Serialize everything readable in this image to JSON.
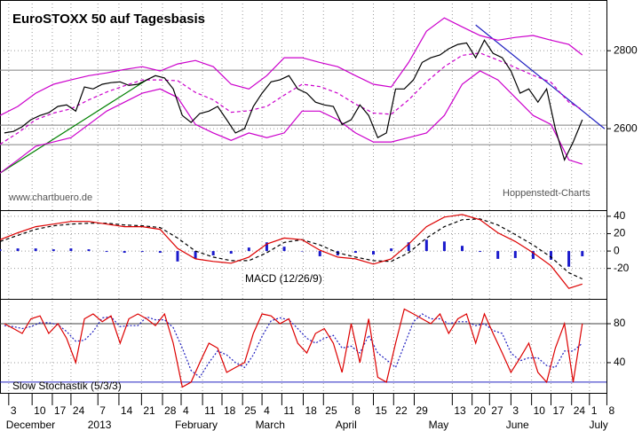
{
  "chart_data": [
    {
      "type": "line",
      "title": "EuroSTOXX 50 auf Tagesbasis",
      "annotations": [
        "www.chartbuero.de",
        "Hoppenstedt-Charts"
      ],
      "xlim": [
        0,
        153
      ],
      "ylim": [
        2391,
        2930
      ],
      "yticks": [
        2600,
        2800
      ],
      "grid": true,
      "levels": [
        {
          "value": 2750,
          "color": "#808080"
        },
        {
          "value": 2609,
          "color": "#808080"
        },
        {
          "value": 2559,
          "color": "#808080"
        }
      ],
      "trendlines": [
        {
          "x": [
            0,
            37
          ],
          "values": [
            2486,
            2725
          ],
          "color": "#008000"
        },
        {
          "x": [
            120,
            152.5
          ],
          "values": [
            2866,
            2600
          ],
          "color": "#2020c0"
        }
      ],
      "series": [
        {
          "style": "solid",
          "color": "#cc00cc",
          "x": [
            0,
            4.5,
            9.0,
            13.5,
            17.9,
            22.4,
            26.9,
            31.4,
            35.9,
            40.4,
            44.8,
            49.3,
            53.8,
            58.3,
            62.8,
            67.3,
            71.7,
            76.2,
            80.7,
            85.2,
            89.7,
            94.2,
            98.7,
            103.1,
            107.6,
            112.1,
            116.6,
            121.1,
            125.6,
            130.0,
            134.5,
            139.0,
            143.5,
            146.9
          ],
          "values": [
            2634,
            2657,
            2691,
            2714,
            2725,
            2736,
            2743,
            2752,
            2759,
            2748,
            2766,
            2775,
            2759,
            2714,
            2702,
            2736,
            2782,
            2782,
            2770,
            2759,
            2736,
            2714,
            2707,
            2770,
            2850,
            2884,
            2861,
            2839,
            2827,
            2834,
            2839,
            2827,
            2816,
            2789
          ]
        },
        {
          "style": "dashed",
          "color": "#cc00cc",
          "x": [
            0,
            4.5,
            9.0,
            13.5,
            17.9,
            22.4,
            26.9,
            31.4,
            35.9,
            40.4,
            44.8,
            49.3,
            53.8,
            58.3,
            62.8,
            67.3,
            71.7,
            76.2,
            80.7,
            85.2,
            89.7,
            94.2,
            98.7,
            103.1,
            107.6,
            112.1,
            116.6,
            121.1,
            125.6,
            130.0,
            134.5,
            139.0,
            143.5,
            146.9
          ],
          "values": [
            2560,
            2589,
            2623,
            2640,
            2651,
            2674,
            2694,
            2710,
            2725,
            2725,
            2723,
            2693,
            2674,
            2642,
            2646,
            2657,
            2686,
            2714,
            2708,
            2691,
            2663,
            2640,
            2637,
            2674,
            2720,
            2759,
            2788,
            2794,
            2776,
            2757,
            2737,
            2719,
            2668,
            2649
          ]
        },
        {
          "style": "solid",
          "color": "#cc00cc",
          "x": [
            0,
            4.5,
            9.0,
            13.5,
            17.9,
            22.4,
            26.9,
            31.4,
            35.9,
            40.4,
            44.8,
            49.3,
            53.8,
            58.3,
            62.8,
            67.3,
            71.7,
            76.2,
            80.7,
            85.2,
            89.7,
            94.2,
            98.7,
            103.1,
            107.6,
            112.1,
            116.6,
            121.1,
            125.6,
            130.0,
            134.5,
            139.0,
            143.5,
            146.9
          ],
          "values": [
            2486,
            2520,
            2555,
            2566,
            2577,
            2611,
            2645,
            2668,
            2691,
            2702,
            2680,
            2611,
            2589,
            2570,
            2589,
            2577,
            2589,
            2645,
            2645,
            2623,
            2589,
            2566,
            2566,
            2577,
            2589,
            2634,
            2714,
            2748,
            2725,
            2680,
            2634,
            2611,
            2520,
            2509
          ]
        },
        {
          "style": "solid",
          "color": "#000000",
          "x": [
            1.1,
            3.4,
            5.6,
            7.8,
            10.1,
            12.3,
            14.6,
            16.8,
            19.1,
            21.3,
            23.5,
            25.8,
            28.0,
            30.3,
            32.5,
            34.8,
            37.0,
            39.2,
            41.5,
            43.7,
            46.0,
            48.2,
            50.4,
            52.7,
            54.9,
            57.2,
            59.4,
            61.7,
            63.9,
            66.1,
            68.4,
            70.6,
            72.9,
            75.1,
            77.4,
            79.6,
            81.8,
            84.1,
            86.3,
            88.6,
            90.8,
            93.0,
            95.3,
            97.5,
            99.8,
            102.0,
            104.3,
            106.5,
            108.7,
            111.0,
            113.2,
            115.5,
            117.7,
            120.0,
            122.2,
            124.4,
            126.7,
            128.9,
            131.2,
            133.4,
            135.7,
            137.9,
            140.1,
            142.4,
            144.6,
            146.9
          ],
          "values": [
            2589,
            2593,
            2605,
            2623,
            2634,
            2641,
            2657,
            2661,
            2645,
            2707,
            2702,
            2714,
            2718,
            2720,
            2711,
            2714,
            2725,
            2736,
            2730,
            2702,
            2634,
            2616,
            2639,
            2645,
            2657,
            2623,
            2589,
            2600,
            2657,
            2691,
            2720,
            2725,
            2736,
            2702,
            2691,
            2668,
            2661,
            2657,
            2611,
            2623,
            2661,
            2634,
            2577,
            2589,
            2702,
            2702,
            2725,
            2770,
            2782,
            2789,
            2805,
            2816,
            2820,
            2782,
            2827,
            2793,
            2782,
            2748,
            2691,
            2702,
            2668,
            2702,
            2600,
            2520,
            2566,
            2623
          ]
        }
      ]
    },
    {
      "type": "line",
      "label": "MACD (12/26/9)",
      "xlim": [
        0,
        153
      ],
      "ylim": [
        -55,
        47
      ],
      "yticks": [
        -20,
        0,
        20,
        40
      ],
      "grid": true,
      "levels": [],
      "trendlines": [],
      "series": [
        {
          "style": "bars",
          "color": "#1a1acc",
          "x": [
            0,
            4.5,
            9.0,
            13.5,
            17.9,
            22.4,
            26.9,
            31.4,
            35.9,
            40.4,
            44.8,
            49.3,
            53.8,
            58.3,
            62.8,
            67.3,
            71.7,
            76.2,
            80.7,
            85.2,
            89.7,
            94.2,
            98.7,
            103.1,
            107.6,
            112.1,
            116.6,
            121.1,
            125.6,
            130.0,
            134.5,
            139.0,
            143.5,
            146.9
          ],
          "values": [
            2,
            3,
            3,
            2,
            3,
            2,
            -1,
            -2,
            -1,
            -2,
            -12,
            -9,
            -5,
            -3,
            4,
            10,
            5,
            0,
            -6,
            -5,
            -2,
            -4,
            3,
            10,
            13,
            11,
            6,
            -1,
            -9,
            -8,
            -9,
            -10,
            -18,
            -6
          ]
        },
        {
          "style": "dashed",
          "color": "#000000",
          "x": [
            0,
            4.5,
            9.0,
            13.5,
            17.9,
            22.4,
            26.9,
            31.4,
            35.9,
            40.4,
            44.8,
            49.3,
            53.8,
            58.3,
            62.8,
            67.3,
            71.7,
            76.2,
            80.7,
            85.2,
            89.7,
            94.2,
            98.7,
            103.1,
            107.6,
            112.1,
            116.6,
            121.1,
            125.6,
            130.0,
            134.5,
            139.0,
            143.5,
            146.9
          ],
          "values": [
            11,
            18,
            25,
            29,
            31,
            32,
            32,
            30,
            29,
            27,
            15,
            0,
            -7,
            -11,
            -11,
            -2,
            10,
            13,
            7,
            -2,
            -7,
            -11,
            -12,
            -2,
            15,
            28,
            36,
            37,
            30,
            19,
            7,
            -7,
            -25,
            -32
          ]
        },
        {
          "style": "solid",
          "color": "#dd0000",
          "x": [
            0,
            4.5,
            9.0,
            13.5,
            17.9,
            22.4,
            26.9,
            31.4,
            35.9,
            40.4,
            44.8,
            49.3,
            53.8,
            58.3,
            62.8,
            67.3,
            71.7,
            76.2,
            80.7,
            85.2,
            89.7,
            94.2,
            98.7,
            103.1,
            107.6,
            112.1,
            116.6,
            121.1,
            125.6,
            130.0,
            134.5,
            139.0,
            143.5,
            146.9
          ],
          "values": [
            13,
            21,
            28,
            31,
            34,
            34,
            31,
            28,
            28,
            25,
            3,
            -9,
            -12,
            -14,
            -7,
            8,
            15,
            13,
            1,
            -7,
            -9,
            -15,
            -9,
            8,
            28,
            39,
            42,
            36,
            21,
            11,
            -2,
            -17,
            -43,
            -38
          ]
        }
      ]
    },
    {
      "type": "line",
      "label": "Slow Stochastik (5/3/3)",
      "xlim": [
        0,
        153
      ],
      "ylim": [
        9,
        105.5
      ],
      "yticks": [
        40,
        80
      ],
      "grid": true,
      "levels": [
        {
          "value": 80,
          "color": "#404040"
        },
        {
          "value": 20,
          "color": "#2020c0"
        }
      ],
      "trendlines": [],
      "xticks": [
        {
          "value": 2.2,
          "label": "3"
        },
        {
          "value": 8.1,
          "label": "10"
        },
        {
          "value": 13.2,
          "label": "17"
        },
        {
          "value": 17.9,
          "label": "24"
        },
        {
          "value": 24.7,
          "label": "7"
        },
        {
          "value": 30.0,
          "label": "14"
        },
        {
          "value": 35.7,
          "label": "21"
        },
        {
          "value": 41.0,
          "label": "28"
        },
        {
          "value": 45.7,
          "label": "4"
        },
        {
          "value": 51.1,
          "label": "11"
        },
        {
          "value": 56.0,
          "label": "18"
        },
        {
          "value": 61.2,
          "label": "25"
        },
        {
          "value": 66.1,
          "label": "4"
        },
        {
          "value": 71.1,
          "label": "11"
        },
        {
          "value": 76.5,
          "label": "18"
        },
        {
          "value": 81.6,
          "label": "25"
        },
        {
          "value": 89.0,
          "label": "8"
        },
        {
          "value": 94.2,
          "label": "15"
        },
        {
          "value": 99.3,
          "label": "22"
        },
        {
          "value": 104.5,
          "label": "29"
        },
        {
          "value": 114.1,
          "label": "13"
        },
        {
          "value": 119.1,
          "label": "20"
        },
        {
          "value": 123.5,
          "label": "27"
        },
        {
          "value": 128.9,
          "label": "3"
        },
        {
          "value": 134.1,
          "label": "10"
        },
        {
          "value": 139.0,
          "label": "17"
        },
        {
          "value": 144.2,
          "label": "24"
        },
        {
          "value": 148.7,
          "label": "1"
        },
        {
          "value": 153.1,
          "label": "8"
        }
      ],
      "month_labels": [
        {
          "value": 0.4,
          "label": "December"
        },
        {
          "value": 21.0,
          "label": "2013"
        },
        {
          "value": 43.0,
          "label": "February"
        },
        {
          "value": 63.3,
          "label": "March"
        },
        {
          "value": 83.5,
          "label": "April"
        },
        {
          "value": 107.0,
          "label": "May"
        },
        {
          "value": 126.5,
          "label": "June"
        },
        {
          "value": 147.5,
          "label": "July"
        }
      ],
      "series": [
        {
          "style": "dotted",
          "color": "#2020c0",
          "x": [
            1.1,
            3.4,
            5.6,
            7.8,
            10.1,
            12.3,
            14.6,
            16.8,
            19.1,
            21.3,
            23.5,
            25.8,
            28.0,
            30.3,
            32.5,
            34.8,
            37.0,
            39.2,
            41.5,
            43.7,
            46.0,
            48.2,
            50.4,
            52.7,
            54.9,
            57.2,
            59.4,
            61.7,
            63.9,
            66.1,
            68.4,
            70.6,
            72.9,
            75.1,
            77.4,
            79.6,
            81.8,
            84.1,
            86.3,
            88.6,
            90.8,
            93.0,
            95.3,
            97.5,
            99.8,
            102.0,
            104.3,
            106.5,
            108.7,
            111.0,
            113.2,
            115.5,
            117.7,
            120.0,
            122.2,
            124.4,
            126.7,
            128.9,
            131.2,
            133.4,
            135.7,
            137.9,
            140.1,
            142.4,
            144.6,
            146.9
          ],
          "values": [
            78,
            77,
            75,
            77,
            81,
            81,
            79,
            72,
            62,
            63,
            72,
            86,
            87,
            77,
            78,
            78,
            87,
            84,
            84,
            76,
            55,
            32,
            25,
            40,
            52,
            48,
            40,
            35,
            48,
            67,
            83,
            86,
            84,
            75,
            65,
            60,
            65,
            68,
            55,
            57,
            50,
            68,
            50,
            43,
            35,
            58,
            82,
            90,
            85,
            85,
            80,
            82,
            82,
            78,
            80,
            73,
            70,
            50,
            42,
            45,
            45,
            37,
            35,
            52,
            52,
            60
          ]
        },
        {
          "style": "solid",
          "color": "#dd0000",
          "x": [
            1.1,
            3.4,
            5.6,
            7.8,
            10.1,
            12.3,
            14.6,
            16.8,
            19.1,
            21.3,
            23.5,
            25.8,
            28.0,
            30.3,
            32.5,
            34.8,
            37.0,
            39.2,
            41.5,
            43.7,
            46.0,
            48.2,
            50.4,
            52.7,
            54.9,
            57.2,
            59.4,
            61.7,
            63.9,
            66.1,
            68.4,
            70.6,
            72.9,
            75.1,
            77.4,
            79.6,
            81.8,
            84.1,
            86.3,
            88.6,
            90.8,
            93.0,
            95.3,
            97.5,
            99.8,
            102.0,
            104.3,
            106.5,
            108.7,
            111.0,
            113.2,
            115.5,
            117.7,
            120.0,
            122.2,
            124.4,
            126.7,
            128.9,
            131.2,
            133.4,
            135.7,
            137.9,
            140.1,
            142.4,
            144.6,
            146.9
          ],
          "values": [
            80,
            75,
            70,
            85,
            88,
            70,
            80,
            65,
            40,
            85,
            90,
            82,
            88,
            60,
            85,
            90,
            85,
            78,
            90,
            60,
            15,
            20,
            40,
            60,
            55,
            30,
            35,
            40,
            70,
            90,
            88,
            80,
            85,
            60,
            50,
            70,
            75,
            60,
            30,
            80,
            40,
            85,
            25,
            20,
            60,
            95,
            90,
            85,
            80,
            90,
            70,
            85,
            90,
            60,
            90,
            70,
            50,
            30,
            45,
            60,
            30,
            20,
            55,
            80,
            20,
            80
          ]
        }
      ]
    }
  ]
}
